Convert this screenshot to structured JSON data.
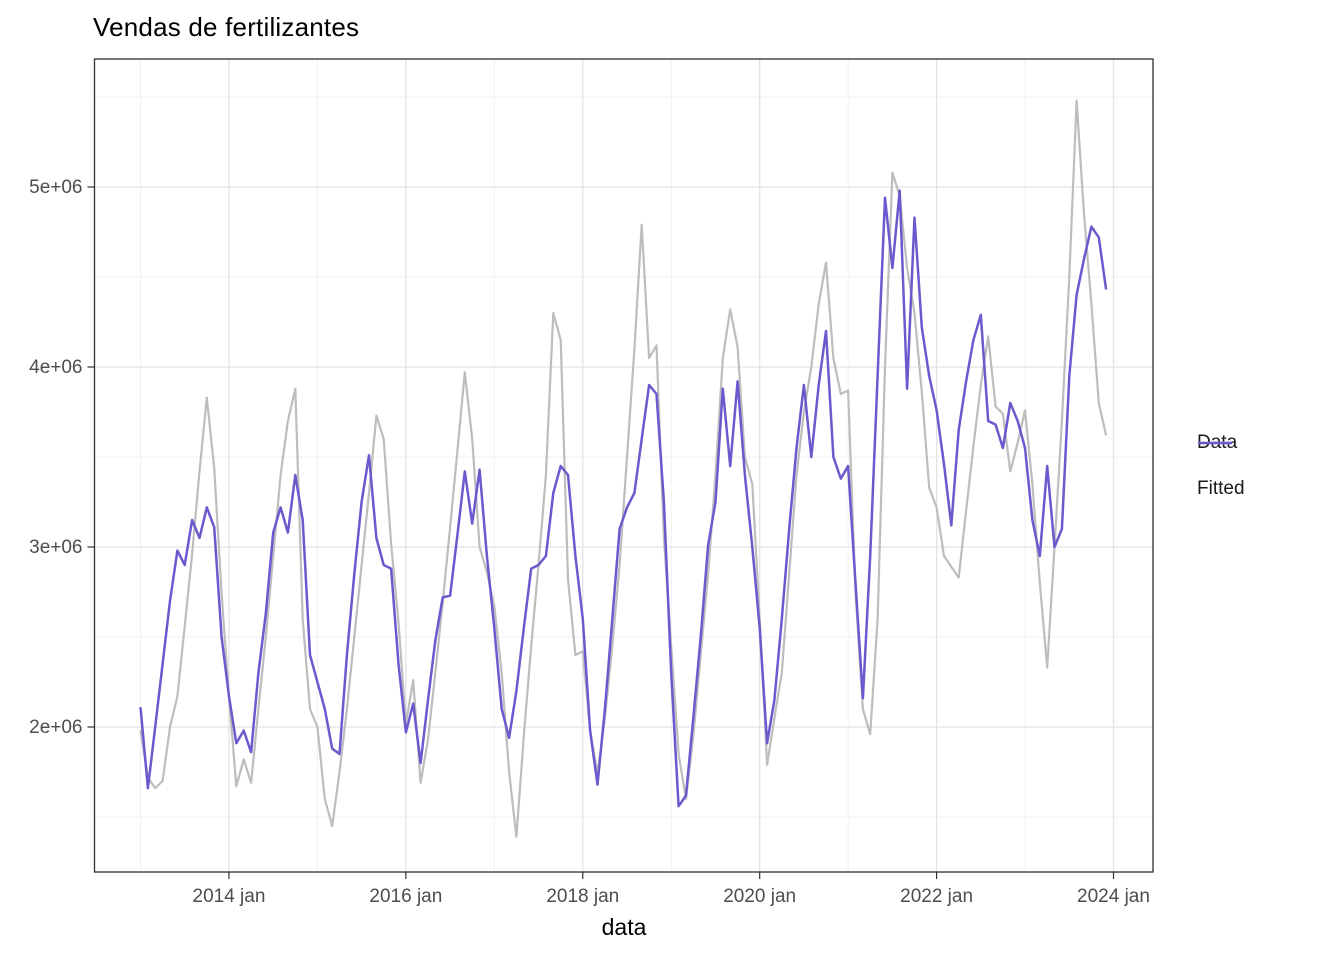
{
  "title": "Vendas de fertilizantes",
  "chart_data": {
    "type": "line",
    "title": "Vendas de fertilizantes",
    "xlabel": "data",
    "ylabel": "",
    "x_unit": "month",
    "x_range": {
      "start": "2013-01",
      "end": "2023-12",
      "points_per_series": 132
    },
    "x_ticks": [
      {
        "year": 2014,
        "label": "2014 jan"
      },
      {
        "year": 2016,
        "label": "2016 jan"
      },
      {
        "year": 2018,
        "label": "2018 jan"
      },
      {
        "year": 2020,
        "label": "2020 jan"
      },
      {
        "year": 2022,
        "label": "2022 jan"
      },
      {
        "year": 2024,
        "label": "2024 jan"
      }
    ],
    "x_minor_years": [
      2013,
      2015,
      2017,
      2019,
      2021,
      2023
    ],
    "y_ticks": [
      {
        "value_millions": 2,
        "label": "2e+06"
      },
      {
        "value_millions": 3,
        "label": "3e+06"
      },
      {
        "value_millions": 4,
        "label": "4e+06"
      },
      {
        "value_millions": 5,
        "label": "5e+06"
      }
    ],
    "y_minor_millions": [
      1.5,
      2.5,
      3.5,
      4.5,
      5.5
    ],
    "ylim_millions": [
      1.19,
      5.71
    ],
    "grid": true,
    "legend_position": "right",
    "series": [
      {
        "name": "Data",
        "color": "#bdbdbd",
        "values_millions": [
          1.98,
          1.72,
          1.66,
          1.7,
          2.0,
          2.17,
          2.56,
          2.96,
          3.42,
          3.83,
          3.44,
          2.74,
          2.17,
          1.67,
          1.82,
          1.69,
          2.1,
          2.5,
          2.95,
          3.4,
          3.7,
          3.88,
          2.6,
          2.1,
          2.0,
          1.6,
          1.45,
          1.75,
          2.1,
          2.5,
          2.9,
          3.3,
          3.73,
          3.6,
          3.02,
          2.58,
          2.02,
          2.26,
          1.69,
          1.93,
          2.3,
          2.69,
          3.11,
          3.54,
          3.97,
          3.6,
          3.0,
          2.86,
          2.67,
          2.3,
          1.75,
          1.39,
          1.95,
          2.45,
          2.9,
          3.4,
          4.3,
          4.15,
          2.82,
          2.4,
          2.42,
          1.98,
          1.74,
          2.05,
          2.45,
          2.9,
          3.5,
          4.1,
          4.79,
          4.05,
          4.12,
          3.05,
          2.45,
          1.85,
          1.6,
          1.95,
          2.4,
          2.85,
          3.4,
          4.05,
          4.32,
          4.11,
          3.5,
          3.35,
          2.6,
          1.79,
          2.05,
          2.3,
          2.85,
          3.4,
          3.75,
          4.0,
          4.35,
          4.58,
          4.05,
          3.85,
          3.87,
          2.75,
          2.1,
          1.96,
          2.6,
          4.0,
          5.08,
          4.95,
          4.55,
          4.3,
          3.86,
          3.33,
          3.22,
          2.95,
          2.89,
          2.83,
          3.2,
          3.56,
          3.9,
          4.17,
          3.78,
          3.74,
          3.42,
          3.58,
          3.76,
          3.35,
          2.8,
          2.33,
          3.0,
          3.7,
          4.5,
          5.48,
          4.85,
          4.35,
          3.8,
          3.62
        ]
      },
      {
        "name": "Fitted",
        "color": "#6a5acd",
        "values_millions": [
          2.11,
          1.66,
          2.0,
          2.35,
          2.7,
          2.98,
          2.9,
          3.15,
          3.05,
          3.22,
          3.11,
          2.5,
          2.17,
          1.91,
          1.98,
          1.86,
          2.3,
          2.63,
          3.08,
          3.22,
          3.08,
          3.4,
          3.15,
          2.4,
          2.25,
          2.1,
          1.88,
          1.85,
          2.4,
          2.85,
          3.25,
          3.51,
          3.05,
          2.9,
          2.88,
          2.35,
          1.97,
          2.13,
          1.8,
          2.15,
          2.48,
          2.72,
          2.73,
          3.07,
          3.42,
          3.13,
          3.43,
          2.95,
          2.55,
          2.1,
          1.94,
          2.2,
          2.55,
          2.88,
          2.9,
          2.95,
          3.3,
          3.45,
          3.4,
          2.95,
          2.6,
          1.98,
          1.68,
          2.1,
          2.6,
          3.1,
          3.22,
          3.3,
          3.6,
          3.9,
          3.85,
          3.25,
          2.3,
          1.56,
          1.62,
          2.05,
          2.5,
          3.01,
          3.25,
          3.88,
          3.45,
          3.92,
          3.4,
          3.0,
          2.55,
          1.91,
          2.15,
          2.6,
          3.1,
          3.55,
          3.9,
          3.5,
          3.9,
          4.2,
          3.5,
          3.38,
          3.45,
          2.8,
          2.16,
          2.95,
          3.95,
          4.94,
          4.55,
          4.98,
          3.88,
          4.83,
          4.22,
          3.95,
          3.76,
          3.46,
          3.12,
          3.65,
          3.92,
          4.15,
          4.29,
          3.7,
          3.68,
          3.55,
          3.8,
          3.7,
          3.55,
          3.15,
          2.95,
          3.45,
          3.0,
          3.1,
          3.95,
          4.4,
          4.6,
          4.78,
          4.72,
          4.43
        ]
      }
    ]
  },
  "colors": {
    "background": "#ffffff",
    "grid_major": "#e3e3e3",
    "grid_minor": "#f0f0f0",
    "panel_border": "#2e2e2e",
    "tick_mark": "#333333",
    "axis_text": "#4d4d4d",
    "title_text": "#000000"
  }
}
